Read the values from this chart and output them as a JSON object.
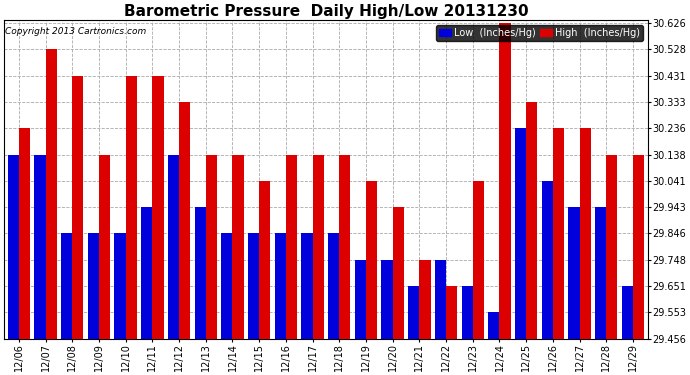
{
  "title": "Barometric Pressure  Daily High/Low 20131230",
  "copyright": "Copyright 2013 Cartronics.com",
  "legend_low": "Low  (Inches/Hg)",
  "legend_high": "High  (Inches/Hg)",
  "dates": [
    "12/06",
    "12/07",
    "12/08",
    "12/09",
    "12/10",
    "12/11",
    "12/12",
    "12/13",
    "12/14",
    "12/15",
    "12/16",
    "12/17",
    "12/18",
    "12/19",
    "12/20",
    "12/21",
    "12/22",
    "12/23",
    "12/24",
    "12/25",
    "12/26",
    "12/27",
    "12/28",
    "12/29"
  ],
  "low_values": [
    30.138,
    30.138,
    29.846,
    29.846,
    29.846,
    29.943,
    30.138,
    29.943,
    29.846,
    29.846,
    29.846,
    29.846,
    29.846,
    29.748,
    29.748,
    29.651,
    29.748,
    29.651,
    29.553,
    30.236,
    30.041,
    29.943,
    29.943,
    29.651
  ],
  "high_values": [
    30.236,
    30.528,
    30.431,
    30.138,
    30.431,
    30.431,
    30.333,
    30.138,
    30.138,
    30.041,
    30.138,
    30.138,
    30.138,
    30.041,
    29.943,
    29.748,
    29.651,
    30.041,
    30.626,
    30.333,
    30.236,
    30.236,
    30.138,
    30.138
  ],
  "yticks": [
    29.456,
    29.553,
    29.651,
    29.748,
    29.846,
    29.943,
    30.041,
    30.138,
    30.236,
    30.333,
    30.431,
    30.528,
    30.626
  ],
  "ymin": 29.456,
  "ymax": 30.626,
  "bar_low_color": "#0000dd",
  "bar_high_color": "#dd0000",
  "grid_color": "#aaaaaa",
  "legend_low_bg": "#0000dd",
  "legend_high_bg": "#dd0000",
  "title_fontsize": 11,
  "tick_fontsize": 7,
  "copyright_fontsize": 6.5,
  "legend_fontsize": 7
}
